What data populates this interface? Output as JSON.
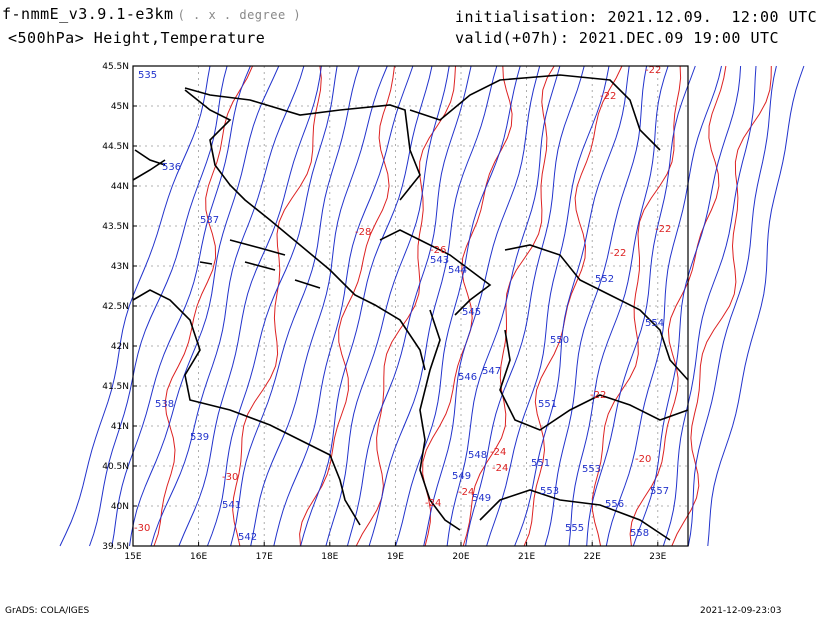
{
  "header": {
    "model": "f-nmmE_v3.9.1-e3km",
    "units": "( . x . degree )",
    "level_field": "<500hPa> Height,Temperature",
    "init": "initialisation: 2021.12.09.  12:00 UTC",
    "valid": "valid(+07h): 2021.DEC.09 19:00 UTC"
  },
  "footer": {
    "left": "GrADS: COLA/IGES",
    "right": "2021-12-09-23:03"
  },
  "axes": {
    "lat_labels": [
      "45.5N",
      "45N",
      "44.5N",
      "44N",
      "43.5N",
      "43N",
      "42.5N",
      "42N",
      "41.5N",
      "41N",
      "40.5N",
      "40N",
      "39.5N"
    ],
    "lon_labels": [
      "15E",
      "16E",
      "17E",
      "18E",
      "19E",
      "20E",
      "21E",
      "22E",
      "23E"
    ]
  },
  "colors": {
    "height": "#2233cc",
    "temperature": "#dd2222",
    "coast": "#000000",
    "grid": "#999999"
  },
  "height_labels": [
    "535",
    "536",
    "537",
    "538",
    "539",
    "541",
    "542",
    "543",
    "544",
    "545",
    "546",
    "547",
    "548",
    "549",
    "549",
    "550",
    "551",
    "551",
    "552",
    "553",
    "553",
    "554",
    "555",
    "556",
    "557",
    "558"
  ],
  "temp_labels": [
    "-22",
    "-22",
    "-22",
    "-22",
    "-22",
    "-26",
    "-28",
    "-30",
    "-24",
    "-24",
    "-24",
    "-24",
    "-20",
    "-30"
  ]
}
